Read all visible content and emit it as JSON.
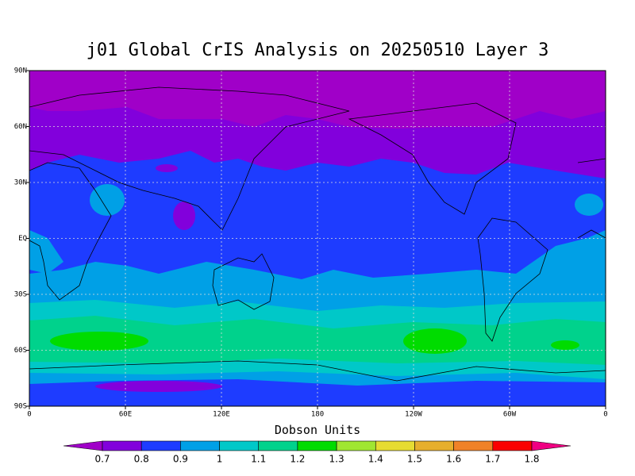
{
  "title": "j01 Global CrIS Analysis on 20250510 Layer 3",
  "map": {
    "xlim": [
      0,
      360
    ],
    "ylim": [
      -90,
      90
    ],
    "xticks": [
      0,
      {
        "value": 60,
        "label": "60E"
      },
      {
        "value": 120,
        "label": "120E"
      },
      180,
      {
        "value": 240,
        "label": "120W"
      },
      {
        "value": 300,
        "label": "60W"
      },
      {
        "value": 360,
        "label": "0"
      }
    ],
    "yticks": [
      {
        "value": -90,
        "label": "90S"
      },
      {
        "value": -60,
        "label": "60S"
      },
      {
        "value": -30,
        "label": "30S"
      },
      {
        "value": 0,
        "label": "EQ"
      },
      {
        "value": 30,
        "label": "30N"
      },
      {
        "value": 60,
        "label": "60N"
      },
      {
        "value": 90,
        "label": "90N"
      }
    ],
    "grid": true
  },
  "colorbar": {
    "title": "Dobson Units",
    "levels": [
      0.7,
      0.8,
      0.9,
      1,
      1.1,
      1.2,
      1.3,
      1.4,
      1.5,
      1.6,
      1.7,
      1.8
    ],
    "colors": [
      "#a000c8",
      "#8200dc",
      "#1e3cff",
      "#00a0e6",
      "#00c8c8",
      "#00d28c",
      "#00dc00",
      "#a0e632",
      "#e6dc32",
      "#e6af2d",
      "#f08228",
      "#fa0000",
      "#f00082"
    ]
  }
}
